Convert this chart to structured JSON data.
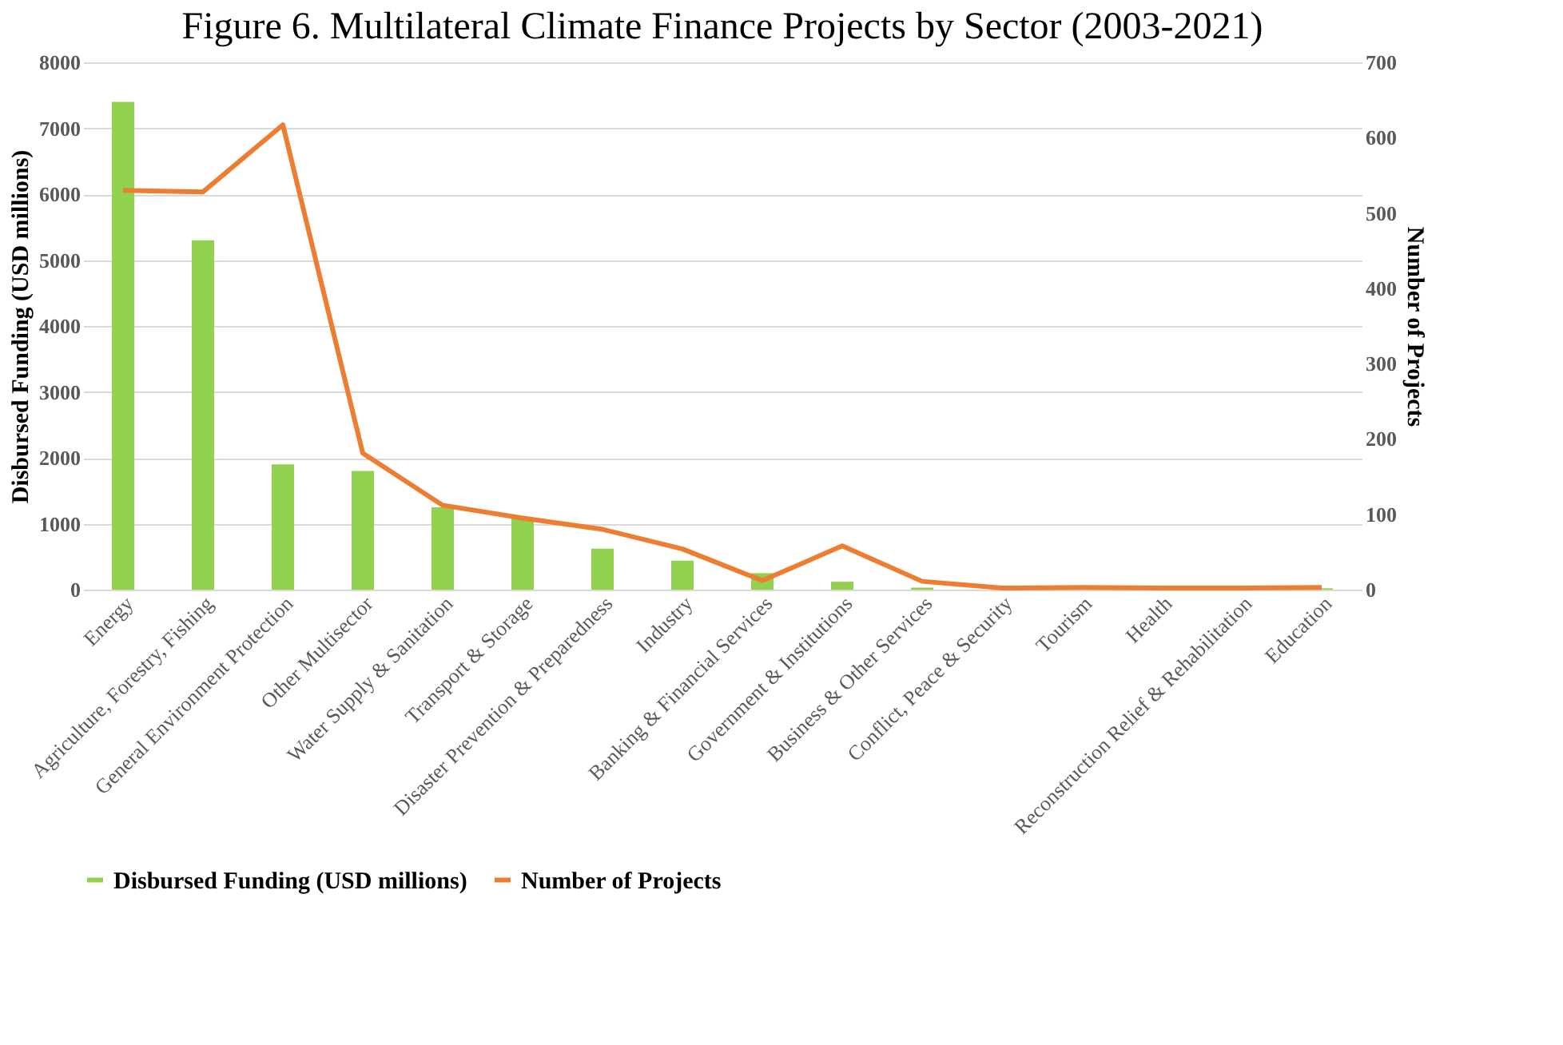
{
  "chart_data": {
    "type": "bar",
    "title": "Figure 6. Multilateral Climate Finance Projects by Sector (2003-2021)",
    "ylabel": "Disbursed Funding (USD millions)",
    "y2label": "Number of Projects",
    "categories": [
      "Energy",
      "Agriculture, Forestry, Fishing",
      "General Environment Protection",
      "Other Multisector",
      "Water Supply & Sanitation",
      "Transport & Storage",
      "Disaster Prevention & Preparedness",
      "Industry",
      "Banking & Financial Services",
      "Government & Institutions",
      "Business & Other Services",
      "Conflict, Peace & Security",
      "Tourism",
      "Health",
      "Reconstruction Relief & Rehabilitation",
      "Education"
    ],
    "series": [
      {
        "name": "Disbursed Funding (USD millions)",
        "color": "#92d050",
        "values": [
          7400,
          5300,
          1900,
          1800,
          1250,
          1100,
          620,
          440,
          250,
          120,
          30,
          null,
          null,
          null,
          null,
          20
        ]
      },
      {
        "name": "Number of Projects",
        "type": "line",
        "axis": "y2",
        "color": "#ed7d31",
        "values": [
          530,
          528,
          617,
          181,
          112,
          95,
          80,
          54,
          12,
          58,
          11,
          2,
          3,
          2,
          2,
          3
        ]
      }
    ],
    "ylim": [
      0,
      8000
    ],
    "yticks": [
      0,
      1000,
      2000,
      3000,
      4000,
      5000,
      6000,
      7000,
      8000
    ],
    "y2lim": [
      0,
      700
    ],
    "y2ticks": [
      0,
      100,
      200,
      300,
      400,
      500,
      600,
      700
    ],
    "grid": "y",
    "legend": "bottom",
    "marker": "none",
    "line_style": "solid"
  }
}
